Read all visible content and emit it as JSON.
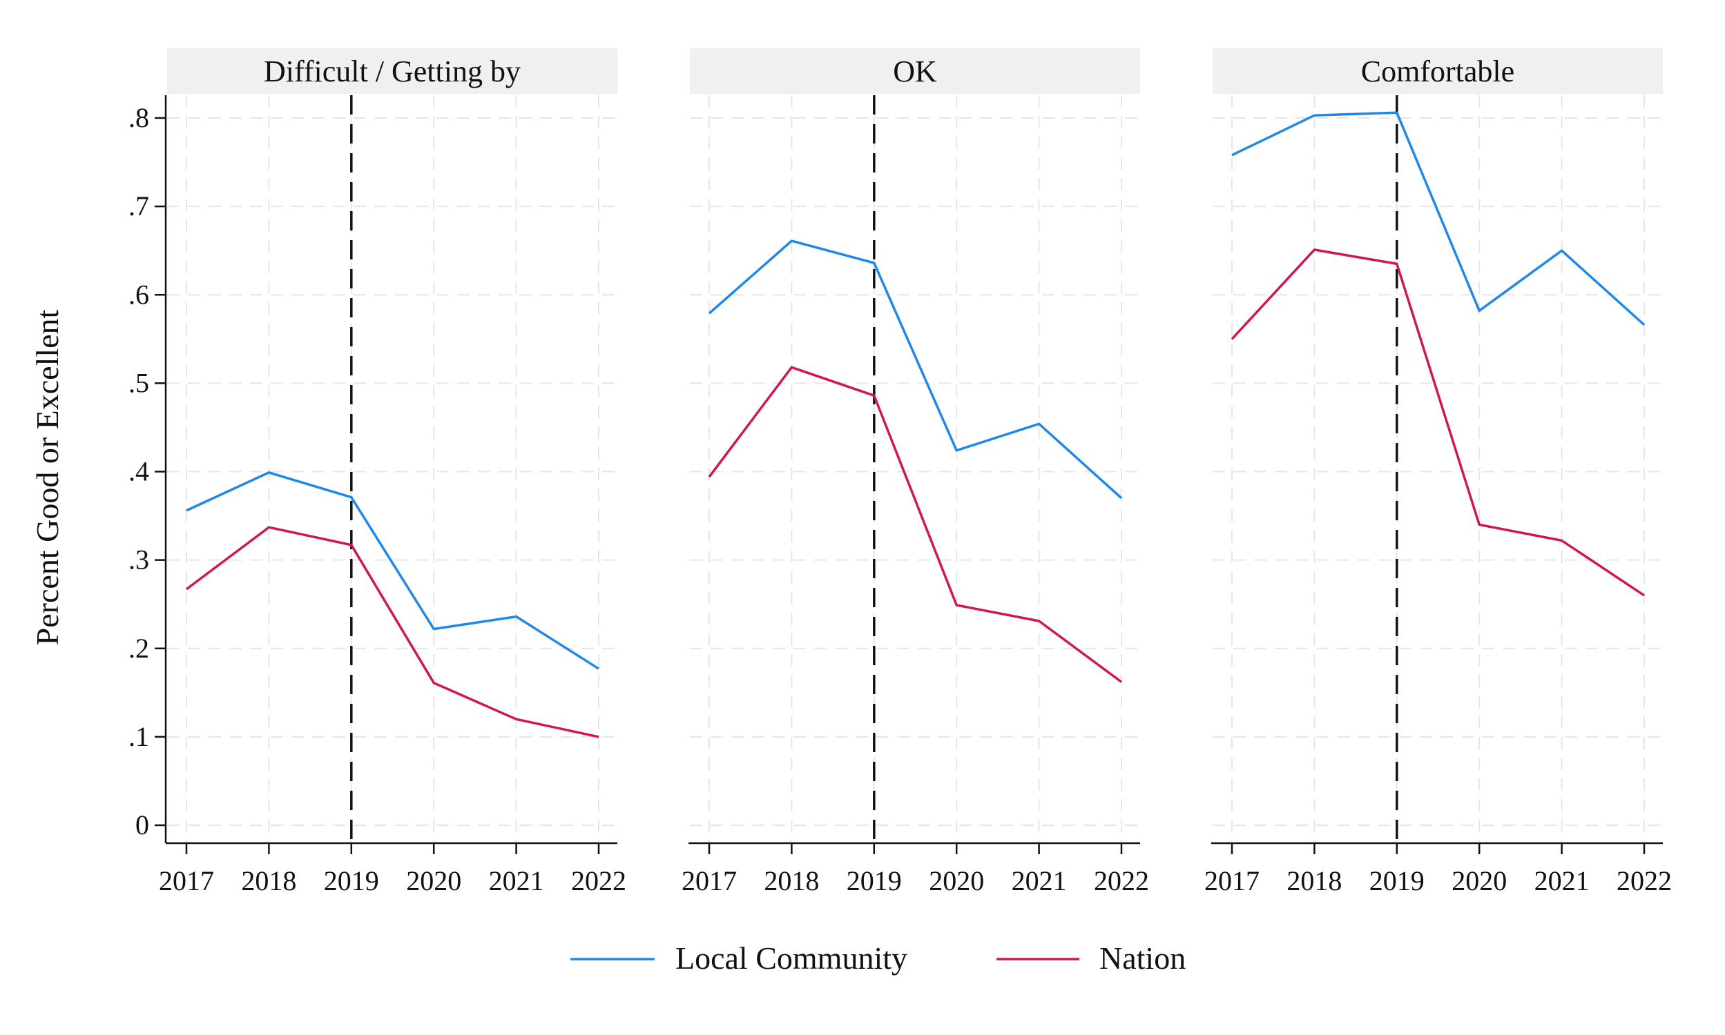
{
  "chart_data": {
    "type": "line",
    "layout": "faceted",
    "ylabel": "Percent Good or Excellent",
    "xlabel": "",
    "x": [
      2017,
      2018,
      2019,
      2020,
      2021,
      2022
    ],
    "ylim": [
      0,
      0.8
    ],
    "yticks": [
      0,
      0.1,
      0.2,
      0.3,
      0.4,
      0.5,
      0.6,
      0.7,
      0.8
    ],
    "ytick_labels": [
      "0",
      ".1",
      ".2",
      ".3",
      ".4",
      ".5",
      ".6",
      ".7",
      ".8"
    ],
    "xtick_labels": [
      "2017",
      "2018",
      "2019",
      "2020",
      "2021",
      "2022"
    ],
    "reference_line_x": 2019,
    "grid": true,
    "legend_position": "bottom",
    "series_styles": [
      {
        "name": "Local Community",
        "color": "#1f88e8"
      },
      {
        "name": "Nation",
        "color": "#d01653"
      }
    ],
    "panels": [
      {
        "title": "Difficult / Getting by",
        "series": [
          {
            "name": "Local Community",
            "values": [
              0.356,
              0.399,
              0.371,
              0.222,
              0.236,
              0.177
            ]
          },
          {
            "name": "Nation",
            "values": [
              0.267,
              0.337,
              0.317,
              0.161,
              0.12,
              0.1
            ]
          }
        ]
      },
      {
        "title": "OK",
        "series": [
          {
            "name": "Local Community",
            "values": [
              0.579,
              0.661,
              0.636,
              0.424,
              0.454,
              0.37
            ]
          },
          {
            "name": "Nation",
            "values": [
              0.394,
              0.518,
              0.486,
              0.249,
              0.231,
              0.162
            ]
          }
        ]
      },
      {
        "title": "Comfortable",
        "series": [
          {
            "name": "Local Community",
            "values": [
              0.758,
              0.803,
              0.806,
              0.582,
              0.65,
              0.566
            ]
          },
          {
            "name": "Nation",
            "values": [
              0.55,
              0.651,
              0.635,
              0.34,
              0.322,
              0.26
            ]
          }
        ]
      }
    ]
  }
}
